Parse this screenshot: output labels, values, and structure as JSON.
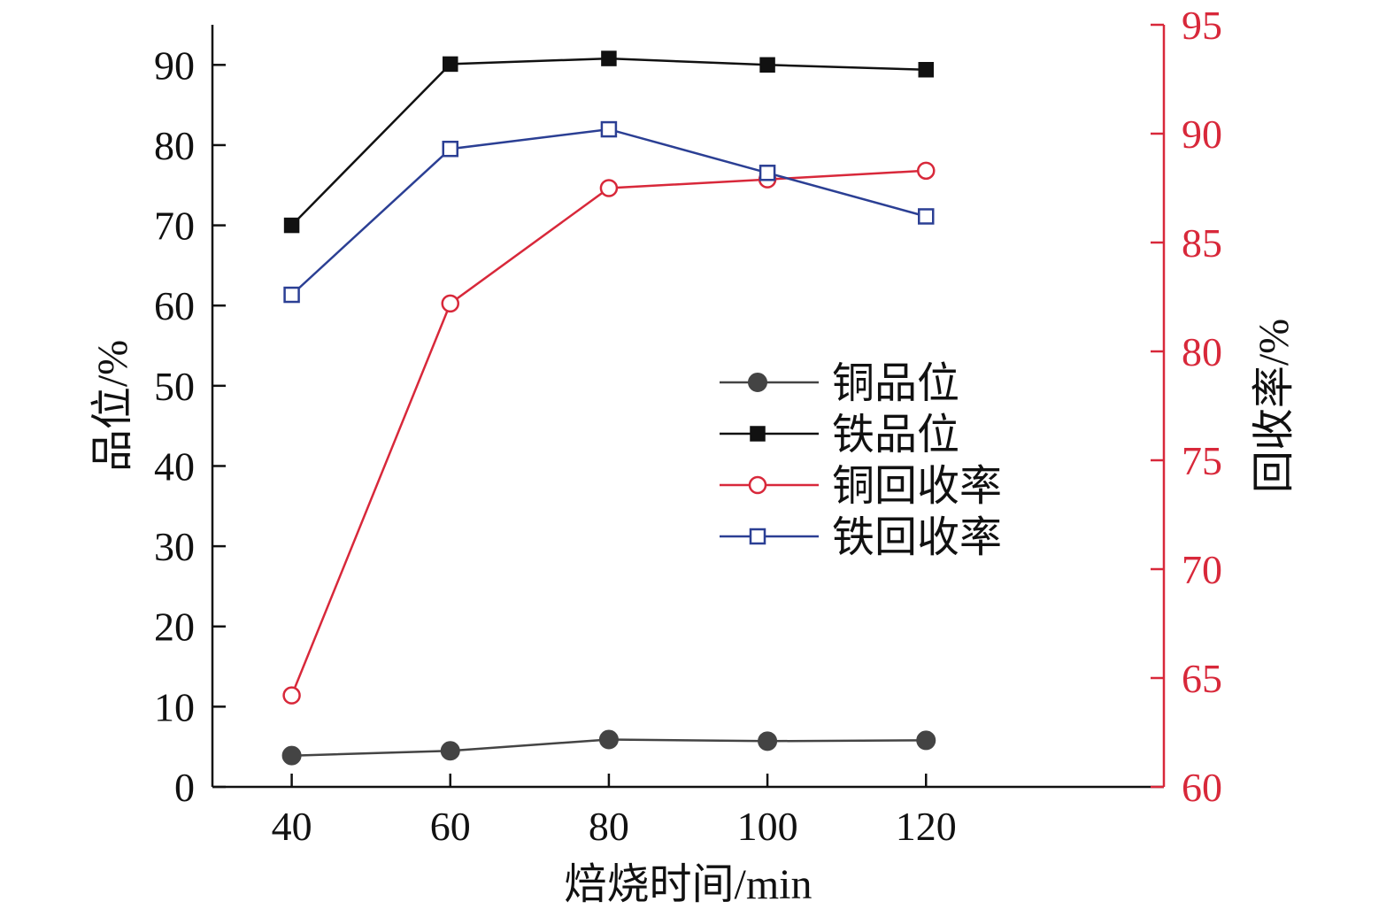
{
  "chart_data": {
    "type": "line",
    "xlabel": "焙烧时间/min",
    "ylabel_left": "品位/%",
    "ylabel_right": "回收率/%",
    "x": [
      40,
      60,
      80,
      100,
      120
    ],
    "x_ticks": [
      "40",
      "60",
      "80",
      "100",
      "120"
    ],
    "xlim": [
      30,
      150
    ],
    "ylim_left": [
      0,
      95
    ],
    "ylim_right": [
      60,
      95
    ],
    "y_ticks_left": [
      "0",
      "10",
      "20",
      "30",
      "40",
      "50",
      "60",
      "70",
      "80",
      "90"
    ],
    "y_ticks_right": [
      "60",
      "65",
      "70",
      "75",
      "80",
      "85",
      "90",
      "95"
    ],
    "grid": false,
    "legend_position": "center-right",
    "series": [
      {
        "name": "铜品位",
        "axis": "left",
        "color": "#444444",
        "marker": "filled-circle",
        "values": [
          3.9,
          4.5,
          5.9,
          5.7,
          5.8
        ]
      },
      {
        "name": "铁品位",
        "axis": "left",
        "color": "#111111",
        "marker": "filled-square",
        "values": [
          70.0,
          90.1,
          90.8,
          90.0,
          89.4
        ]
      },
      {
        "name": "铜回收率",
        "axis": "right",
        "color": "#d8283a",
        "marker": "open-circle",
        "values": [
          64.2,
          82.2,
          87.5,
          87.9,
          88.3
        ]
      },
      {
        "name": "铁回收率",
        "axis": "right",
        "color": "#2b3f94",
        "marker": "open-square",
        "values": [
          82.6,
          89.3,
          90.2,
          88.2,
          86.2
        ]
      }
    ]
  },
  "colors": {
    "right_axis": "#d8283a",
    "left_axis": "#111111"
  }
}
